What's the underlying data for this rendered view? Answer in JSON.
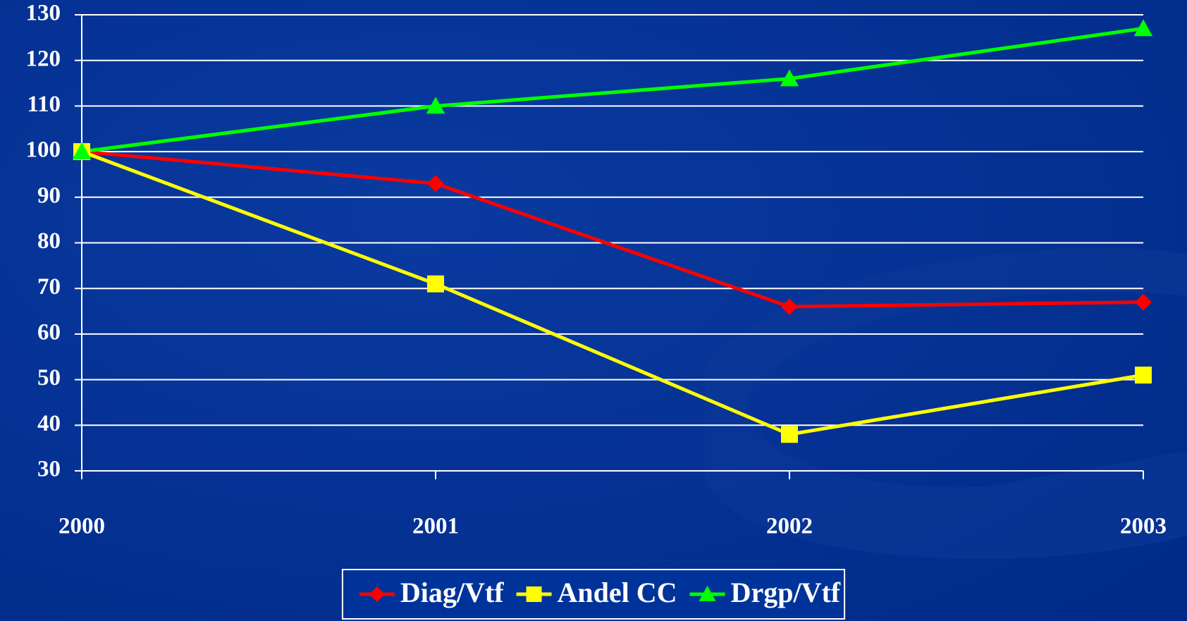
{
  "chart_data": {
    "type": "line",
    "categories": [
      "2000",
      "2001",
      "2002",
      "2003"
    ],
    "series": [
      {
        "name": "Diag/Vtf",
        "color": "#ff0000",
        "marker": "diamond",
        "values": [
          100,
          93,
          66,
          67
        ]
      },
      {
        "name": "Andel CC",
        "color": "#ffff00",
        "marker": "square",
        "values": [
          100,
          71,
          38,
          51
        ]
      },
      {
        "name": "Drgp/Vtf",
        "color": "#00ff00",
        "marker": "triangle",
        "values": [
          100,
          110,
          116,
          127
        ]
      }
    ],
    "ylim": [
      30,
      130
    ],
    "yticks": [
      30,
      40,
      50,
      60,
      70,
      80,
      90,
      100,
      110,
      120,
      130
    ],
    "grid": true,
    "legend": "bottom"
  }
}
